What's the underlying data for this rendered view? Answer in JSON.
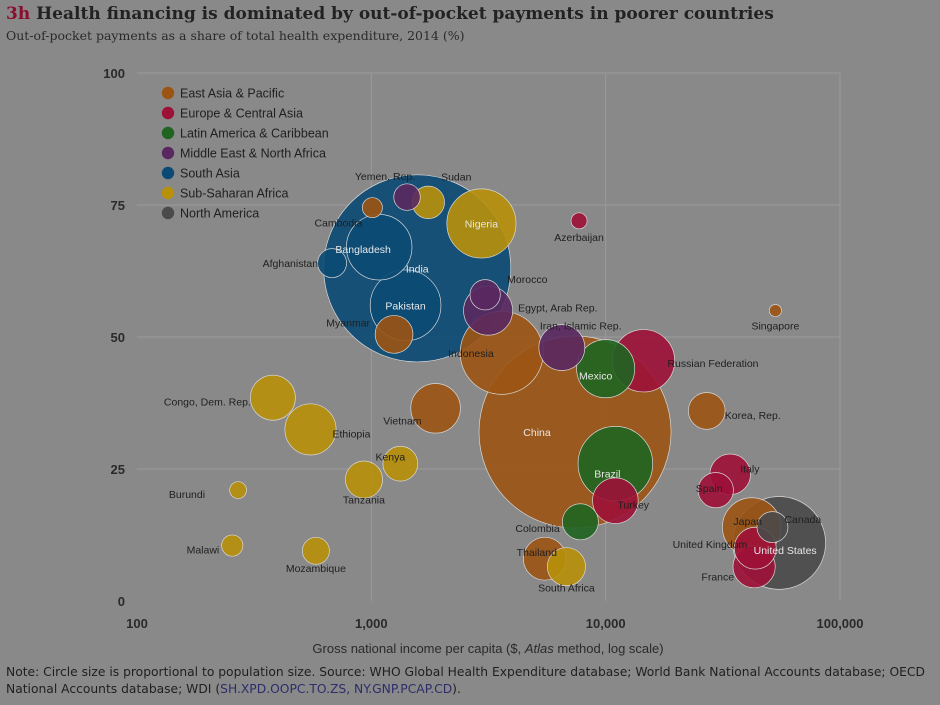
{
  "header": {
    "tag": "3h",
    "title": "Health financing is dominated by out-of-pocket payments in poorer countries",
    "subtitle": "Out-of-pocket payments as a share of total health expenditure, 2014 (%)"
  },
  "note": {
    "text": "Note: Circle size is proportional to population size. Source: WHO Global Health Expenditure database; World Bank National Accounts database; OECD National Accounts database; WDI (",
    "codes": "SH.XPD.OOPC.TO.ZS, NY.GNP.PCAP.CD",
    "end": ")."
  },
  "chart_data": {
    "type": "scatter",
    "title": "Health financing is dominated by out-of-pocket payments in poorer countries",
    "subtitle": "Out-of-pocket payments as a share of total health expenditure, 2014 (%)",
    "xlabel_parts": [
      "Gross national income per capita ($, ",
      "Atlas",
      " method, log scale)"
    ],
    "ylabel": "",
    "xscale": "log",
    "xlim": [
      100,
      100000
    ],
    "ylim": [
      0,
      100
    ],
    "xticks": [
      {
        "value": 100,
        "label": "100"
      },
      {
        "value": 1000,
        "label": "1,000"
      },
      {
        "value": 10000,
        "label": "10,000"
      },
      {
        "value": 100000,
        "label": "100,000"
      }
    ],
    "yticks": [
      {
        "value": 0,
        "label": "0"
      },
      {
        "value": 25,
        "label": "25"
      },
      {
        "value": 50,
        "label": "50"
      },
      {
        "value": 75,
        "label": "75"
      },
      {
        "value": 100,
        "label": "100"
      }
    ],
    "grid": true,
    "legend_position": "top-left",
    "size_encoding": "population",
    "regions": [
      {
        "name": "East Asia & Pacific",
        "color": "#9c5413"
      },
      {
        "name": "Europe & Central Asia",
        "color": "#9d1137"
      },
      {
        "name": "Latin America & Caribbean",
        "color": "#1f6421"
      },
      {
        "name": "Middle East & North Africa",
        "color": "#5a2860"
      },
      {
        "name": "South Asia",
        "color": "#0b4a74"
      },
      {
        "name": "Sub-Saharan Africa",
        "color": "#b8900a"
      },
      {
        "name": "North America",
        "color": "#4a4a4a"
      }
    ],
    "labeled_points": [
      {
        "label": "India",
        "region": "South Asia",
        "x": 1570,
        "y": 63,
        "population": 1295
      },
      {
        "label": "China",
        "region": "East Asia & Pacific",
        "x": 7400,
        "y": 32,
        "population": 1364
      },
      {
        "label": "Pakistan",
        "region": "South Asia",
        "x": 1400,
        "y": 56,
        "population": 185
      },
      {
        "label": "Bangladesh",
        "region": "South Asia",
        "x": 1080,
        "y": 67,
        "population": 159
      },
      {
        "label": "Afghanistan",
        "region": "South Asia",
        "x": 680,
        "y": 64,
        "population": 31
      },
      {
        "label": "Nigeria",
        "region": "Sub-Saharan Africa",
        "x": 2950,
        "y": 71.5,
        "population": 177
      },
      {
        "label": "Sudan",
        "region": "Sub-Saharan Africa",
        "x": 1750,
        "y": 75.5,
        "population": 39
      },
      {
        "label": "Yemen, Rep.",
        "region": "Middle East & North Africa",
        "x": 1420,
        "y": 76.5,
        "population": 26
      },
      {
        "label": "Cambodia",
        "region": "East Asia & Pacific",
        "x": 1010,
        "y": 74.5,
        "population": 15
      },
      {
        "label": "Azerbaijan",
        "region": "Europe & Central Asia",
        "x": 7700,
        "y": 72,
        "population": 9.5
      },
      {
        "label": "Morocco",
        "region": "Middle East & North Africa",
        "x": 3060,
        "y": 58,
        "population": 34
      },
      {
        "label": "Egypt, Arab Rep.",
        "region": "Middle East & North Africa",
        "x": 3150,
        "y": 55,
        "population": 89
      },
      {
        "label": "Iran, Islamic Rep.",
        "region": "Middle East & North Africa",
        "x": 6500,
        "y": 48,
        "population": 78
      },
      {
        "label": "Indonesia",
        "region": "East Asia & Pacific",
        "x": 3600,
        "y": 47,
        "population": 255
      },
      {
        "label": "Myanmar",
        "region": "East Asia & Pacific",
        "x": 1250,
        "y": 50.5,
        "population": 53
      },
      {
        "label": "Singapore",
        "region": "East Asia & Pacific",
        "x": 53000,
        "y": 55,
        "population": 5.5
      },
      {
        "label": "Russian Federation",
        "region": "Europe & Central Asia",
        "x": 14500,
        "y": 45.5,
        "population": 144
      },
      {
        "label": "Mexico",
        "region": "Latin America & Caribbean",
        "x": 10000,
        "y": 44,
        "population": 125
      },
      {
        "label": "Korea, Rep.",
        "region": "East Asia & Pacific",
        "x": 27000,
        "y": 36,
        "population": 50
      },
      {
        "label": "Congo, Dem. Rep.",
        "region": "Sub-Saharan Africa",
        "x": 380,
        "y": 38.5,
        "population": 75
      },
      {
        "label": "Ethiopia",
        "region": "Sub-Saharan Africa",
        "x": 550,
        "y": 32.5,
        "population": 97
      },
      {
        "label": "Vietnam",
        "region": "East Asia & Pacific",
        "x": 1880,
        "y": 36.5,
        "population": 91
      },
      {
        "label": "Kenya",
        "region": "Sub-Saharan Africa",
        "x": 1330,
        "y": 26,
        "population": 45
      },
      {
        "label": "Tanzania",
        "region": "Sub-Saharan Africa",
        "x": 930,
        "y": 23,
        "population": 51
      },
      {
        "label": "Brazil",
        "region": "Latin America & Caribbean",
        "x": 11000,
        "y": 26,
        "population": 206
      },
      {
        "label": "Italy",
        "region": "Europe & Central Asia",
        "x": 34000,
        "y": 24,
        "population": 61
      },
      {
        "label": "Spain",
        "region": "Europe & Central Asia",
        "x": 29500,
        "y": 21,
        "population": 46
      },
      {
        "label": "Turkey",
        "region": "Europe & Central Asia",
        "x": 11000,
        "y": 19,
        "population": 77
      },
      {
        "label": "Colombia",
        "region": "Latin America & Caribbean",
        "x": 7800,
        "y": 15,
        "population": 48
      },
      {
        "label": "Thailand",
        "region": "East Asia & Pacific",
        "x": 5500,
        "y": 8,
        "population": 68
      },
      {
        "label": "South Africa",
        "region": "Sub-Saharan Africa",
        "x": 6800,
        "y": 6.5,
        "population": 54
      },
      {
        "label": "Burundi",
        "region": "Sub-Saharan Africa",
        "x": 270,
        "y": 21,
        "population": 10.5
      },
      {
        "label": "Malawi",
        "region": "Sub-Saharan Africa",
        "x": 255,
        "y": 10.5,
        "population": 16.7
      },
      {
        "label": "Mozambique",
        "region": "Sub-Saharan Africa",
        "x": 580,
        "y": 9.5,
        "population": 27
      },
      {
        "label": "Japan",
        "region": "East Asia & Pacific",
        "x": 42000,
        "y": 14,
        "population": 127
      },
      {
        "label": "Canada",
        "region": "North America",
        "x": 51500,
        "y": 14,
        "population": 35.5
      },
      {
        "label": "United States",
        "region": "North America",
        "x": 55000,
        "y": 11,
        "population": 319
      },
      {
        "label": "United Kingdom",
        "region": "Europe & Central Asia",
        "x": 43500,
        "y": 10,
        "population": 65
      },
      {
        "label": "France",
        "region": "Europe & Central Asia",
        "x": 43000,
        "y": 6.5,
        "population": 66
      }
    ]
  },
  "labels": {
    "India": "India",
    "China": "China",
    "Pakistan": "Pakistan",
    "Bangladesh": "Bangladesh",
    "Afghanistan": "Afghanistan",
    "Nigeria": "Nigeria",
    "Sudan": "Sudan",
    "Yemen": "Yemen, Rep.",
    "Cambodia": "Cambodia",
    "Azerbaijan": "Azerbaijan",
    "Morocco": "Morocco",
    "Egypt": "Egypt, Arab Rep.",
    "Iran": "Iran, Islamic Rep.",
    "Indonesia": "Indonesia",
    "Myanmar": "Myanmar",
    "Singapore": "Singapore",
    "Russia": "Russian Federation",
    "Mexico": "Mexico",
    "Korea": "Korea, Rep.",
    "Congo": "Congo, Dem. Rep.",
    "Ethiopia": "Ethiopia",
    "Vietnam": "Vietnam",
    "Kenya": "Kenya",
    "Tanzania": "Tanzania",
    "Brazil": "Brazil",
    "Italy": "Italy",
    "Spain": "Spain",
    "Turkey": "Turkey",
    "Colombia": "Colombia",
    "Thailand": "Thailand",
    "SouthAfrica": "South Africa",
    "Burundi": "Burundi",
    "Malawi": "Malawi",
    "Mozambique": "Mozambique",
    "Japan": "Japan",
    "Canada": "Canada",
    "UnitedStates": "United States",
    "UnitedKingdom": "United Kingdom",
    "France": "France"
  }
}
